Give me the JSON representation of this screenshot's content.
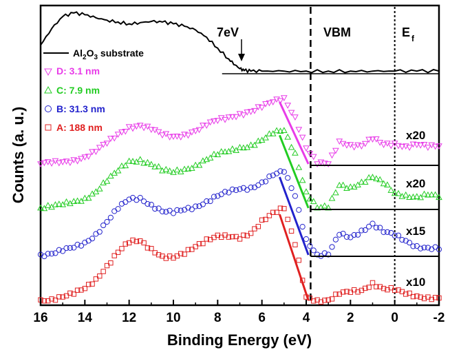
{
  "chart_data": {
    "type": "line",
    "xlabel": "Binding Energy (eV)",
    "ylabel": "Counts (a. u.)",
    "xlim": [
      16,
      -2
    ],
    "x_reversed": true,
    "xticks": [
      16,
      14,
      12,
      10,
      8,
      6,
      4,
      2,
      0,
      -2
    ],
    "xtick_labels": [
      "16",
      "14",
      "12",
      "10",
      "8",
      "6",
      "4",
      "2",
      "0",
      "-2"
    ],
    "legend_position": "top-left",
    "series": [
      {
        "name": "Al2O3 substrate",
        "label_parts": [
          "Al",
          "2",
          "O",
          "3",
          " substrate"
        ],
        "color": "#000000",
        "marker": "line",
        "x": [
          16,
          15.5,
          15,
          14.5,
          14,
          13.5,
          13,
          12.5,
          12,
          11.5,
          11,
          10.5,
          10,
          9.5,
          9,
          8.5,
          8,
          7.5,
          7.2,
          7,
          6.8,
          6.5,
          6,
          5,
          4,
          3,
          2,
          1,
          0,
          -1,
          -2
        ],
        "y": [
          0.45,
          0.72,
          0.92,
          0.98,
          0.95,
          0.9,
          0.86,
          0.83,
          0.8,
          0.82,
          0.84,
          0.83,
          0.8,
          0.76,
          0.7,
          0.58,
          0.4,
          0.22,
          0.12,
          0.06,
          0.03,
          0.02,
          0.02,
          0.02,
          0.02,
          0.02,
          0.02,
          0.02,
          0.02,
          0.02,
          0.02
        ]
      },
      {
        "name": "D: 3.1 nm",
        "color": "#e83be8",
        "marker": "triangle-down",
        "multiplier": "x20",
        "x": [
          16,
          15.5,
          15,
          14.5,
          14,
          13.5,
          13,
          12.5,
          12,
          11.5,
          11,
          10.5,
          10,
          9.5,
          9,
          8.5,
          8,
          7.5,
          7,
          6.5,
          6,
          5.5,
          5,
          4.5,
          4,
          3.5,
          3,
          2.5,
          2,
          1.5,
          1,
          0.5,
          0,
          -0.5,
          -1,
          -1.5,
          -2
        ],
        "y": [
          0.02,
          0.03,
          0.05,
          0.08,
          0.12,
          0.2,
          0.32,
          0.45,
          0.56,
          0.58,
          0.52,
          0.44,
          0.42,
          0.45,
          0.5,
          0.58,
          0.65,
          0.7,
          0.75,
          0.78,
          0.84,
          0.92,
          0.98,
          0.7,
          0.25,
          0.02,
          0.02,
          0.35,
          0.3,
          0.28,
          0.38,
          0.3,
          0.32,
          0.28,
          0.3,
          0.26,
          0.28
        ]
      },
      {
        "name": "C: 7.9 nm",
        "color": "#22cc22",
        "marker": "triangle-up",
        "multiplier": "x20",
        "x": [
          16,
          15.5,
          15,
          14.5,
          14,
          13.5,
          13,
          12.5,
          12,
          11.5,
          11,
          10.5,
          10,
          9.5,
          9,
          8.5,
          8,
          7.5,
          7,
          6.5,
          6,
          5.5,
          5,
          4.5,
          4,
          3.5,
          3,
          2.5,
          2,
          1.5,
          1,
          0.5,
          0,
          -0.5,
          -1,
          -1.5,
          -2
        ],
        "y": [
          0.02,
          0.03,
          0.06,
          0.1,
          0.14,
          0.22,
          0.35,
          0.48,
          0.6,
          0.62,
          0.56,
          0.48,
          0.46,
          0.5,
          0.55,
          0.62,
          0.68,
          0.72,
          0.77,
          0.8,
          0.86,
          0.94,
          0.98,
          0.7,
          0.22,
          0.02,
          0.02,
          0.3,
          0.28,
          0.34,
          0.4,
          0.32,
          0.2,
          0.18,
          0.16,
          0.18,
          0.15
        ]
      },
      {
        "name": "B: 31.3 nm",
        "color": "#2222cc",
        "marker": "circle",
        "multiplier": "x15",
        "x": [
          16,
          15.5,
          15,
          14.5,
          14,
          13.5,
          13,
          12.5,
          12,
          11.5,
          11,
          10.5,
          10,
          9.5,
          9,
          8.5,
          8,
          7.5,
          7,
          6.5,
          6,
          5.5,
          5,
          4.5,
          4,
          3.5,
          3,
          2.5,
          2,
          1.5,
          1,
          0.5,
          0,
          -0.5,
          -1,
          -1.5,
          -2
        ],
        "y": [
          0.02,
          0.03,
          0.06,
          0.1,
          0.16,
          0.26,
          0.4,
          0.55,
          0.66,
          0.68,
          0.6,
          0.52,
          0.5,
          0.54,
          0.58,
          0.64,
          0.7,
          0.74,
          0.78,
          0.8,
          0.86,
          0.94,
          0.98,
          0.7,
          0.2,
          0.02,
          0.02,
          0.25,
          0.22,
          0.3,
          0.38,
          0.28,
          0.24,
          0.18,
          0.12,
          0.1,
          0.08
        ]
      },
      {
        "name": "A: 188 nm",
        "color": "#e02020",
        "marker": "square",
        "multiplier": "x10",
        "x": [
          16,
          15.5,
          15,
          14.5,
          14,
          13.5,
          13,
          12.5,
          12,
          11.5,
          11,
          10.5,
          10,
          9.5,
          9,
          8.5,
          8,
          7.5,
          7,
          6.5,
          6,
          5.5,
          5,
          4.5,
          4,
          3.5,
          3,
          2.5,
          2,
          1.5,
          1,
          0.5,
          0,
          -0.5,
          -1,
          -1.5,
          -2
        ],
        "y": [
          0.02,
          0.03,
          0.05,
          0.08,
          0.14,
          0.24,
          0.38,
          0.52,
          0.62,
          0.64,
          0.56,
          0.48,
          0.46,
          0.5,
          0.58,
          0.66,
          0.7,
          0.68,
          0.66,
          0.72,
          0.86,
          0.94,
          0.98,
          0.6,
          0.05,
          0.02,
          0.02,
          0.08,
          0.1,
          0.12,
          0.2,
          0.14,
          0.12,
          0.08,
          0.06,
          0.05,
          0.04
        ]
      }
    ],
    "annotations": {
      "seven_ev": "7eV",
      "vbm": "VBM",
      "ef_main": "E",
      "ef_sub": "f"
    },
    "vertical_lines": [
      {
        "x": 3.8,
        "style": "dashed",
        "label": "VBM"
      },
      {
        "x": 0,
        "style": "dotted",
        "label": "Ef"
      }
    ]
  }
}
